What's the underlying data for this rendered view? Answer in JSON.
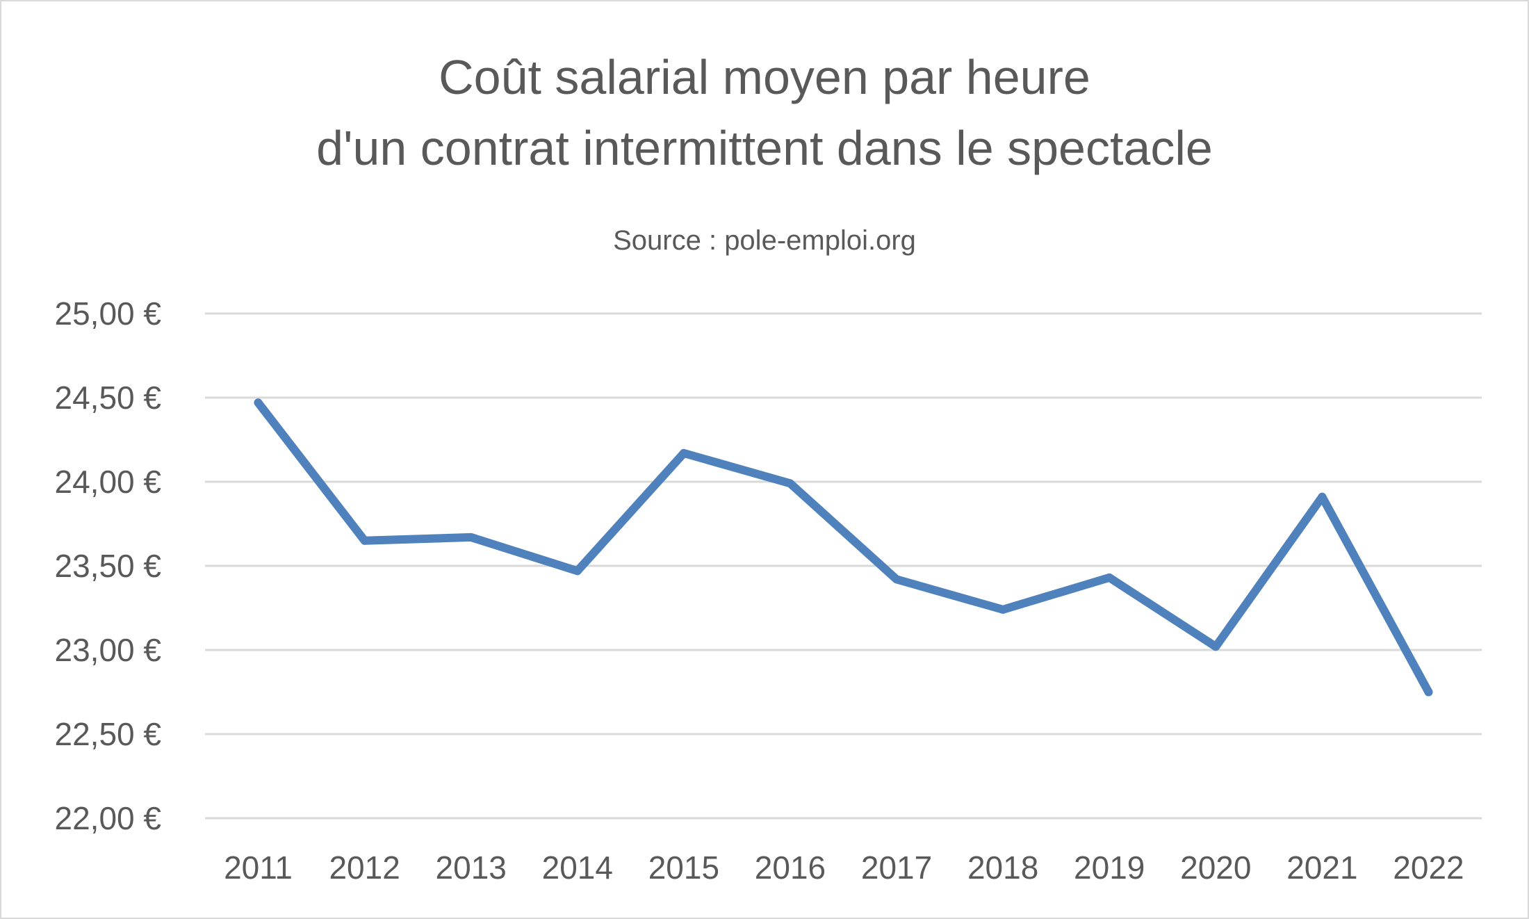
{
  "chart_data": {
    "type": "line",
    "title_line1": "Coût salarial moyen par heure",
    "title_line2": "d'un contrat intermittent dans le spectacle",
    "subtitle": "Source : pole-emploi.org",
    "xlabel": "",
    "ylabel": "",
    "categories": [
      "2011",
      "2012",
      "2013",
      "2014",
      "2015",
      "2016",
      "2017",
      "2018",
      "2019",
      "2020",
      "2021",
      "2022"
    ],
    "series": [
      {
        "values": [
          24.47,
          23.65,
          23.67,
          23.47,
          24.17,
          23.99,
          23.42,
          23.24,
          23.43,
          23.02,
          23.91,
          22.75
        ]
      }
    ],
    "ylim": [
      22,
      25
    ],
    "y_ticks": [
      "22,00 €",
      "22,50 €",
      "23,00 €",
      "23,50 €",
      "24,00 €",
      "24,50 €",
      "25,00 €"
    ],
    "y_tick_values": [
      22,
      22.5,
      23,
      23.5,
      24,
      24.5,
      25
    ],
    "grid": true,
    "legend": "none",
    "line_color": "#4f81bd",
    "grid_color": "#d9d9d9",
    "text_color": "#595959"
  }
}
